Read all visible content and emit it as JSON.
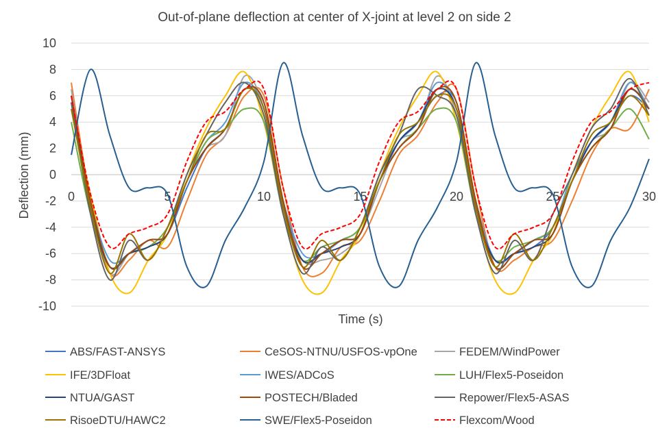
{
  "chart_data": {
    "type": "line",
    "title": "Out-of-plane deflection at center of X-joint at level 2 on side 2",
    "xlabel": "Time (s)",
    "ylabel": "Deflection (mm)",
    "xlim": [
      0,
      30
    ],
    "ylim": [
      -10,
      10
    ],
    "x_ticks": [
      0,
      5,
      10,
      15,
      20,
      25,
      30
    ],
    "y_ticks": [
      -10,
      -8,
      -6,
      -4,
      -2,
      0,
      2,
      4,
      6,
      8,
      10
    ],
    "grid": "horizontal",
    "legend_position": "bottom",
    "legend_columns": 3,
    "series": [
      {
        "name": "ABS/FAST-ANSYS",
        "color": "#4472C4",
        "dash": "solid",
        "x": [
          0,
          1,
          2,
          3,
          4,
          5,
          6,
          7,
          8,
          9,
          10,
          11,
          12,
          13,
          14,
          15,
          16,
          17,
          18,
          19,
          20,
          21,
          22,
          23,
          24,
          25,
          26,
          27,
          28,
          29,
          30
        ],
        "y": [
          6.0,
          -2.0,
          -7.0,
          -6.0,
          -5.5,
          -4.5,
          -1.0,
          2.0,
          3.5,
          6.5,
          5.5,
          -2.0,
          -6.5,
          -6.0,
          -5.0,
          -4.5,
          -0.5,
          2.5,
          4.0,
          6.0,
          5.5,
          -2.0,
          -6.5,
          -6.0,
          -5.5,
          -4.0,
          -0.5,
          2.5,
          4.0,
          6.0,
          5.0
        ]
      },
      {
        "name": "CeSOS-NTNU/USFOS-vpOne",
        "color": "#ED7D31",
        "dash": "solid",
        "x": [
          0,
          1,
          2,
          3,
          4,
          5,
          6,
          7,
          8,
          9,
          10,
          11,
          12,
          13,
          14,
          15,
          16,
          17,
          18,
          19,
          20,
          21,
          22,
          23,
          24,
          25,
          26,
          27,
          28,
          29,
          30
        ],
        "y": [
          7.0,
          -2.0,
          -7.5,
          -6.5,
          -5.0,
          -5.5,
          -2.0,
          1.5,
          3.0,
          6.0,
          6.0,
          -1.0,
          -7.0,
          -7.5,
          -5.5,
          -5.0,
          -2.0,
          1.5,
          3.0,
          5.5,
          6.5,
          -1.0,
          -7.0,
          -6.5,
          -5.5,
          -5.0,
          -2.0,
          1.5,
          3.5,
          3.5,
          6.5
        ]
      },
      {
        "name": "FEDEM/WindPower",
        "color": "#A5A5A5",
        "dash": "solid",
        "x": [
          0,
          1,
          2,
          3,
          4,
          5,
          6,
          7,
          8,
          9,
          10,
          11,
          12,
          13,
          14,
          15,
          16,
          17,
          18,
          19,
          20,
          21,
          22,
          23,
          24,
          25,
          26,
          27,
          28,
          29,
          30
        ],
        "y": [
          6.5,
          -2.5,
          -7.5,
          -6.0,
          -5.0,
          -4.5,
          -0.5,
          2.0,
          3.0,
          7.5,
          5.0,
          -2.5,
          -6.5,
          -6.5,
          -6.0,
          -4.5,
          -1.0,
          2.5,
          3.5,
          7.5,
          4.5,
          -2.5,
          -7.0,
          -6.0,
          -5.0,
          -4.0,
          -0.5,
          2.5,
          3.5,
          7.0,
          5.5
        ]
      },
      {
        "name": "IFE/3DFloat",
        "color": "#FFC000",
        "dash": "solid",
        "x": [
          0,
          1,
          2,
          3,
          4,
          5,
          6,
          7,
          8,
          9,
          10,
          11,
          12,
          13,
          14,
          15,
          16,
          17,
          18,
          19,
          20,
          21,
          22,
          23,
          24,
          25,
          26,
          27,
          28,
          29,
          30
        ],
        "y": [
          5.0,
          -1.5,
          -7.5,
          -9.0,
          -6.5,
          -4.5,
          0.0,
          3.5,
          6.0,
          7.8,
          4.0,
          -3.0,
          -8.0,
          -9.0,
          -6.5,
          -4.5,
          0.0,
          3.5,
          6.0,
          7.8,
          4.0,
          -3.0,
          -8.0,
          -9.0,
          -6.5,
          -4.5,
          0.0,
          3.5,
          6.0,
          7.8,
          4.0
        ]
      },
      {
        "name": "IWES/ADCoS",
        "color": "#5B9BD5",
        "dash": "solid",
        "x": [
          0,
          1,
          2,
          3,
          4,
          5,
          6,
          7,
          8,
          9,
          10,
          11,
          12,
          13,
          14,
          15,
          16,
          17,
          18,
          19,
          20,
          21,
          22,
          23,
          24,
          25,
          26,
          27,
          28,
          29,
          30
        ],
        "y": [
          6.0,
          -2.0,
          -6.5,
          -6.0,
          -5.0,
          -4.5,
          -0.5,
          2.5,
          4.0,
          7.0,
          5.0,
          -2.0,
          -6.0,
          -6.0,
          -5.0,
          -4.0,
          0.0,
          2.5,
          4.0,
          7.0,
          5.0,
          -2.0,
          -6.5,
          -6.0,
          -5.0,
          -4.0,
          0.0,
          2.5,
          4.0,
          7.0,
          5.0
        ]
      },
      {
        "name": "LUH/Flex5-Poseidon",
        "color": "#70AD47",
        "dash": "solid",
        "x": [
          0,
          1,
          2,
          3,
          4,
          5,
          6,
          7,
          8,
          9,
          10,
          11,
          12,
          13,
          14,
          15,
          16,
          17,
          18,
          19,
          20,
          21,
          22,
          23,
          24,
          25,
          26,
          27,
          28,
          29,
          30
        ],
        "y": [
          4.0,
          -3.0,
          -7.0,
          -6.0,
          -5.5,
          -4.0,
          -0.5,
          2.5,
          3.5,
          5.0,
          4.0,
          -3.0,
          -6.5,
          -5.5,
          -5.0,
          -4.0,
          -0.5,
          2.0,
          3.5,
          5.0,
          4.0,
          -3.0,
          -6.5,
          -5.5,
          -5.0,
          -4.0,
          -0.5,
          2.0,
          3.5,
          5.0,
          2.7
        ]
      },
      {
        "name": "NTUA/GAST",
        "color": "#264478",
        "dash": "solid",
        "x": [
          0,
          1,
          2,
          3,
          4,
          5,
          6,
          7,
          8,
          9,
          10,
          11,
          12,
          13,
          14,
          15,
          16,
          17,
          18,
          19,
          20,
          21,
          22,
          23,
          24,
          25,
          26,
          27,
          28,
          29,
          30
        ],
        "y": [
          5.5,
          -2.5,
          -7.0,
          -6.0,
          -5.5,
          -4.5,
          -0.5,
          2.0,
          3.5,
          6.5,
          5.0,
          -2.5,
          -6.5,
          -6.0,
          -5.5,
          -4.5,
          -0.5,
          2.5,
          4.0,
          6.5,
          5.0,
          -2.5,
          -6.5,
          -6.0,
          -5.5,
          -4.5,
          -0.5,
          2.5,
          4.0,
          6.5,
          5.0
        ]
      },
      {
        "name": "POSTECH/Bladed",
        "color": "#9E480E",
        "dash": "solid",
        "x": [
          0,
          1,
          2,
          3,
          4,
          5,
          6,
          7,
          8,
          9,
          10,
          11,
          12,
          13,
          14,
          15,
          16,
          17,
          18,
          19,
          20,
          21,
          22,
          23,
          24,
          25,
          26,
          27,
          28,
          29,
          30
        ],
        "y": [
          6.0,
          -2.0,
          -7.0,
          -6.0,
          -5.0,
          -4.5,
          -0.5,
          2.0,
          3.5,
          6.5,
          5.5,
          -2.0,
          -7.0,
          -6.0,
          -5.0,
          -4.5,
          -0.5,
          2.0,
          3.5,
          6.5,
          5.5,
          -2.0,
          -7.0,
          -6.0,
          -5.0,
          -4.5,
          -0.5,
          2.0,
          3.5,
          6.5,
          5.0
        ]
      },
      {
        "name": "Repower/Flex5-ASAS",
        "color": "#636363",
        "dash": "solid",
        "x": [
          0,
          1,
          2,
          3,
          4,
          5,
          6,
          7,
          8,
          9,
          10,
          11,
          12,
          13,
          14,
          15,
          16,
          17,
          18,
          19,
          20,
          21,
          22,
          23,
          24,
          25,
          26,
          27,
          28,
          29,
          30
        ],
        "y": [
          5.5,
          -3.0,
          -8.0,
          -5.0,
          -6.5,
          -4.0,
          0.0,
          3.0,
          5.5,
          7.0,
          4.5,
          -3.0,
          -7.5,
          -5.5,
          -6.5,
          -4.0,
          0.0,
          3.0,
          6.5,
          6.0,
          4.5,
          -3.0,
          -7.5,
          -5.0,
          -6.5,
          -3.0,
          0.0,
          3.5,
          5.0,
          7.3,
          4.5
        ]
      },
      {
        "name": "RisoeDTU/HAWC2",
        "color": "#997300",
        "dash": "solid",
        "x": [
          0,
          1,
          2,
          3,
          4,
          5,
          6,
          7,
          8,
          9,
          10,
          11,
          12,
          13,
          14,
          15,
          16,
          17,
          18,
          19,
          20,
          21,
          22,
          23,
          24,
          25,
          26,
          27,
          28,
          29,
          30
        ],
        "y": [
          5.0,
          -2.5,
          -7.5,
          -4.5,
          -6.5,
          -4.0,
          -0.5,
          3.0,
          3.5,
          6.5,
          5.0,
          -2.5,
          -7.0,
          -5.0,
          -6.5,
          -4.0,
          -0.5,
          3.0,
          4.0,
          6.0,
          5.0,
          -2.5,
          -7.0,
          -4.5,
          -6.5,
          -4.0,
          -0.5,
          3.0,
          4.0,
          6.0,
          4.5
        ]
      },
      {
        "name": "SWE/Flex5-Poseidon",
        "color": "#255E91",
        "dash": "solid",
        "x": [
          0,
          1,
          2,
          3,
          4,
          5,
          6,
          7,
          8,
          9,
          10,
          11,
          12,
          13,
          14,
          15,
          16,
          17,
          18,
          19,
          20,
          21,
          22,
          23,
          24,
          25,
          26,
          27,
          28,
          29,
          30
        ],
        "y": [
          1.5,
          8.0,
          3.0,
          -1.0,
          -1.0,
          -1.5,
          -7.0,
          -8.5,
          -5.0,
          -2.5,
          1.0,
          8.5,
          3.0,
          -1.0,
          -1.0,
          -1.5,
          -7.0,
          -8.5,
          -5.0,
          -2.5,
          1.0,
          8.5,
          3.0,
          -1.0,
          -1.0,
          -1.5,
          -7.0,
          -8.5,
          -5.0,
          -2.5,
          1.2
        ]
      },
      {
        "name": "Flexcom/Wood",
        "color": "#FF0000",
        "dash": "dashed",
        "x": [
          0,
          1,
          2,
          3,
          4,
          5,
          6,
          7,
          8,
          9,
          10,
          11,
          12,
          13,
          14,
          15,
          16,
          17,
          18,
          19,
          20,
          21,
          22,
          23,
          24,
          25,
          26,
          27,
          28,
          29,
          30
        ],
        "y": [
          6.0,
          -1.5,
          -5.5,
          -4.5,
          -4.0,
          -3.0,
          1.0,
          4.0,
          4.8,
          6.5,
          6.5,
          -1.0,
          -5.5,
          -4.5,
          -4.0,
          -3.0,
          1.0,
          4.0,
          4.8,
          6.5,
          6.5,
          -1.0,
          -5.5,
          -4.5,
          -4.0,
          -3.0,
          1.0,
          4.0,
          4.8,
          6.5,
          7.0
        ]
      }
    ]
  }
}
